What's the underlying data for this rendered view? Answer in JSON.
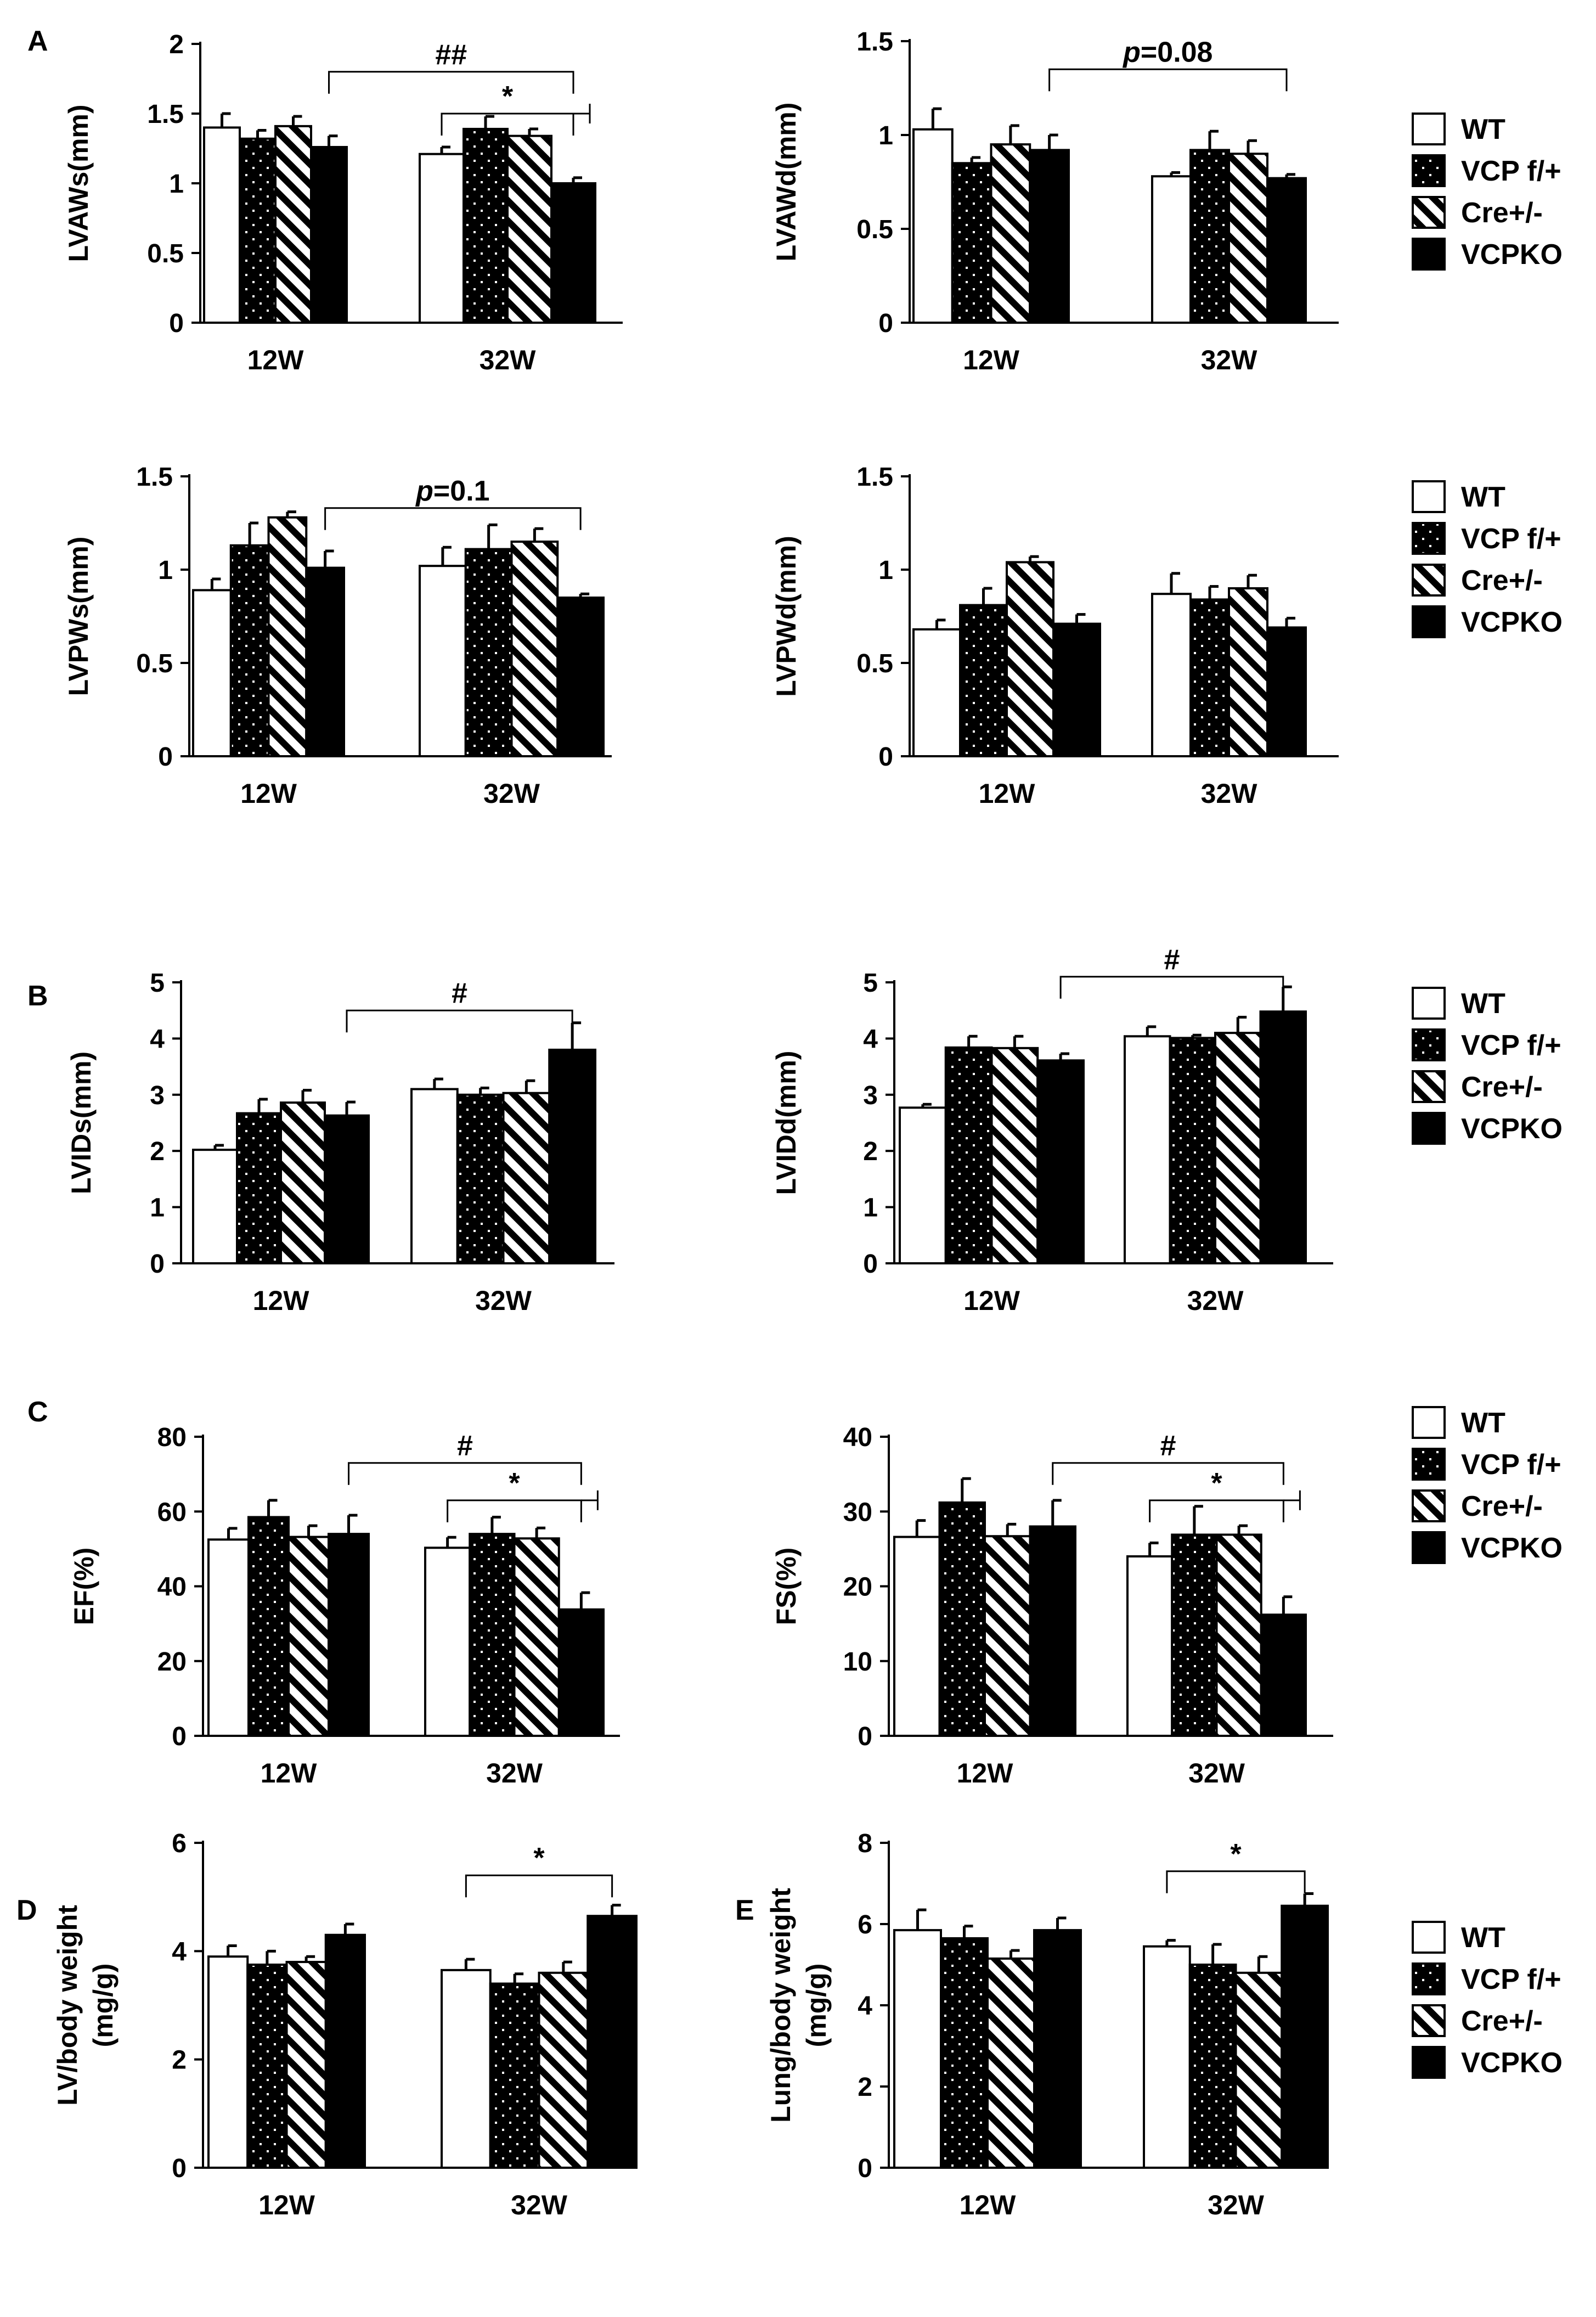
{
  "figure": {
    "panel_labels": [
      "A",
      "B",
      "C",
      "D",
      "E"
    ],
    "legend": [
      "WT",
      "VCP f/+",
      "Cre+/-",
      "VCPKO"
    ],
    "groups": [
      "12W",
      "32W"
    ]
  },
  "chart_data": [
    {
      "id": "lvaws",
      "panel": "A",
      "type": "bar",
      "ylabel": "LVAWs(mm)",
      "ylim": [
        0,
        2
      ],
      "yticks": [
        "0",
        "0.5",
        "1",
        "1.5",
        "2"
      ],
      "categories": [
        "12W",
        "32W"
      ],
      "series": [
        {
          "name": "WT",
          "values": [
            1.4,
            1.21
          ],
          "errors": [
            0.1,
            0.05
          ]
        },
        {
          "name": "VCP f/+",
          "values": [
            1.32,
            1.39
          ],
          "errors": [
            0.06,
            0.09
          ]
        },
        {
          "name": "Cre+/-",
          "values": [
            1.41,
            1.34
          ],
          "errors": [
            0.07,
            0.05
          ]
        },
        {
          "name": "VCPKO",
          "values": [
            1.26,
            1.0
          ],
          "errors": [
            0.08,
            0.04
          ]
        }
      ],
      "annotations": [
        {
          "label": "##",
          "from": [
            0,
            3
          ],
          "to": [
            1,
            3
          ],
          "y": 1.8
        },
        {
          "label": "*",
          "from": [
            1,
            0
          ],
          "to": [
            1,
            3
          ],
          "y": 1.5,
          "dagger": true
        }
      ]
    },
    {
      "id": "lvawd",
      "panel": "A",
      "type": "bar",
      "ylabel": "LVAWd(mm)",
      "ylim": [
        0,
        1.5
      ],
      "yticks": [
        "0",
        "0.5",
        "1",
        "1.5"
      ],
      "categories": [
        "12W",
        "32W"
      ],
      "series": [
        {
          "name": "WT",
          "values": [
            1.03,
            0.78
          ],
          "errors": [
            0.11,
            0.02
          ]
        },
        {
          "name": "VCP f/+",
          "values": [
            0.85,
            0.92
          ],
          "errors": [
            0.03,
            0.1
          ]
        },
        {
          "name": "Cre+/-",
          "values": [
            0.95,
            0.9
          ],
          "errors": [
            0.1,
            0.07
          ]
        },
        {
          "name": "VCPKO",
          "values": [
            0.92,
            0.77
          ],
          "errors": [
            0.08,
            0.02
          ]
        }
      ],
      "annotations": [
        {
          "label": "p=0.08",
          "italic_p": true,
          "from": [
            0,
            3
          ],
          "to": [
            1,
            3
          ],
          "y": 1.35
        }
      ]
    },
    {
      "id": "lvpws",
      "panel": "A",
      "type": "bar",
      "ylabel": "LVPWs(mm)",
      "ylim": [
        0,
        1.5
      ],
      "yticks": [
        "0",
        "0.5",
        "1",
        "1.5"
      ],
      "categories": [
        "12W",
        "32W"
      ],
      "series": [
        {
          "name": "WT",
          "values": [
            0.89,
            1.02
          ],
          "errors": [
            0.06,
            0.1
          ]
        },
        {
          "name": "VCP f/+",
          "values": [
            1.13,
            1.11
          ],
          "errors": [
            0.12,
            0.13
          ]
        },
        {
          "name": "Cre+/-",
          "values": [
            1.28,
            1.15
          ],
          "errors": [
            0.03,
            0.07
          ]
        },
        {
          "name": "VCPKO",
          "values": [
            1.01,
            0.85
          ],
          "errors": [
            0.09,
            0.02
          ]
        }
      ],
      "annotations": [
        {
          "label": "p=0.1",
          "italic_p": true,
          "from": [
            0,
            3
          ],
          "to": [
            1,
            3
          ],
          "y": 1.33
        }
      ]
    },
    {
      "id": "lvpwd",
      "panel": "A",
      "type": "bar",
      "ylabel": "LVPWd(mm)",
      "ylim": [
        0,
        1.5
      ],
      "yticks": [
        "0",
        "0.5",
        "1",
        "1.5"
      ],
      "categories": [
        "12W",
        "32W"
      ],
      "series": [
        {
          "name": "WT",
          "values": [
            0.68,
            0.87
          ],
          "errors": [
            0.05,
            0.11
          ]
        },
        {
          "name": "VCP f/+",
          "values": [
            0.81,
            0.84
          ],
          "errors": [
            0.09,
            0.07
          ]
        },
        {
          "name": "Cre+/-",
          "values": [
            1.04,
            0.9
          ],
          "errors": [
            0.03,
            0.07
          ]
        },
        {
          "name": "VCPKO",
          "values": [
            0.71,
            0.69
          ],
          "errors": [
            0.05,
            0.05
          ]
        }
      ],
      "annotations": []
    },
    {
      "id": "lvids",
      "panel": "B",
      "type": "bar",
      "ylabel": "LVIDs(mm)",
      "ylim": [
        0,
        5
      ],
      "yticks": [
        "0",
        "1",
        "2",
        "3",
        "4",
        "5"
      ],
      "categories": [
        "12W",
        "32W"
      ],
      "series": [
        {
          "name": "WT",
          "values": [
            2.02,
            3.1
          ],
          "errors": [
            0.08,
            0.18
          ]
        },
        {
          "name": "VCP f/+",
          "values": [
            2.67,
            3.0
          ],
          "errors": [
            0.25,
            0.12
          ]
        },
        {
          "name": "Cre+/-",
          "values": [
            2.86,
            3.03
          ],
          "errors": [
            0.22,
            0.22
          ]
        },
        {
          "name": "VCPKO",
          "values": [
            2.63,
            3.8
          ],
          "errors": [
            0.24,
            0.48
          ]
        }
      ],
      "annotations": [
        {
          "label": "#",
          "from": [
            0,
            3
          ],
          "to": [
            1,
            3
          ],
          "y": 4.5
        }
      ]
    },
    {
      "id": "lvidd",
      "panel": "B",
      "type": "bar",
      "ylabel": "LVIDd(mm)",
      "ylim": [
        0,
        5
      ],
      "yticks": [
        "0",
        "1",
        "2",
        "3",
        "4",
        "5"
      ],
      "categories": [
        "12W",
        "32W"
      ],
      "series": [
        {
          "name": "WT",
          "values": [
            2.77,
            4.04
          ],
          "errors": [
            0.06,
            0.17
          ]
        },
        {
          "name": "VCP f/+",
          "values": [
            3.84,
            4.01
          ],
          "errors": [
            0.2,
            0.05
          ]
        },
        {
          "name": "Cre+/-",
          "values": [
            3.83,
            4.1
          ],
          "errors": [
            0.21,
            0.28
          ]
        },
        {
          "name": "VCPKO",
          "values": [
            3.61,
            4.48
          ],
          "errors": [
            0.12,
            0.44
          ]
        }
      ],
      "annotations": [
        {
          "label": "#",
          "from": [
            0,
            3
          ],
          "to": [
            1,
            3
          ],
          "y": 5.1
        }
      ]
    },
    {
      "id": "ef",
      "panel": "C",
      "type": "bar",
      "ylabel": "EF(%)",
      "ylim": [
        0,
        80
      ],
      "yticks": [
        "0",
        "20",
        "40",
        "60",
        "80"
      ],
      "categories": [
        "12W",
        "32W"
      ],
      "series": [
        {
          "name": "WT",
          "values": [
            52.5,
            50.3
          ],
          "errors": [
            3.0,
            2.8
          ]
        },
        {
          "name": "VCP f/+",
          "values": [
            58.5,
            54.0
          ],
          "errors": [
            4.5,
            4.5
          ]
        },
        {
          "name": "Cre+/-",
          "values": [
            53.2,
            52.8
          ],
          "errors": [
            3.0,
            2.8
          ]
        },
        {
          "name": "VCPKO",
          "values": [
            54.0,
            33.8
          ],
          "errors": [
            5.0,
            4.5
          ]
        }
      ],
      "annotations": [
        {
          "label": "#",
          "from": [
            0,
            3
          ],
          "to": [
            1,
            3
          ],
          "y": 73
        },
        {
          "label": "*",
          "from": [
            1,
            0
          ],
          "to": [
            1,
            3
          ],
          "y": 63,
          "dagger": true
        }
      ]
    },
    {
      "id": "fs",
      "panel": "C",
      "type": "bar",
      "ylabel": "FS(%)",
      "ylim": [
        0,
        40
      ],
      "yticks": [
        "0",
        "10",
        "20",
        "30",
        "40"
      ],
      "categories": [
        "12W",
        "32W"
      ],
      "series": [
        {
          "name": "WT",
          "values": [
            26.6,
            24.0
          ],
          "errors": [
            2.2,
            1.8
          ]
        },
        {
          "name": "VCP f/+",
          "values": [
            31.2,
            26.9
          ],
          "errors": [
            3.2,
            3.8
          ]
        },
        {
          "name": "Cre+/-",
          "values": [
            26.7,
            26.9
          ],
          "errors": [
            1.6,
            1.2
          ]
        },
        {
          "name": "VCPKO",
          "values": [
            28.0,
            16.2
          ],
          "errors": [
            3.5,
            2.4
          ]
        }
      ],
      "annotations": [
        {
          "label": "#",
          "from": [
            0,
            3
          ],
          "to": [
            1,
            3
          ],
          "y": 36.5
        },
        {
          "label": "*",
          "from": [
            1,
            0
          ],
          "to": [
            1,
            3
          ],
          "y": 31.5,
          "dagger": true
        }
      ]
    },
    {
      "id": "lvbw",
      "panel": "D",
      "type": "bar",
      "ylabel": "LV/body weight",
      "ylabel2": "(mg/g)",
      "ylim": [
        0,
        6
      ],
      "yticks": [
        "0",
        "2",
        "4",
        "6"
      ],
      "categories": [
        "12W",
        "32W"
      ],
      "series": [
        {
          "name": "WT",
          "values": [
            3.9,
            3.65
          ],
          "errors": [
            0.2,
            0.2
          ]
        },
        {
          "name": "VCP f/+",
          "values": [
            3.75,
            3.4
          ],
          "errors": [
            0.25,
            0.18
          ]
        },
        {
          "name": "Cre+/-",
          "values": [
            3.8,
            3.6
          ],
          "errors": [
            0.1,
            0.2
          ]
        },
        {
          "name": "VCPKO",
          "values": [
            4.3,
            4.65
          ],
          "errors": [
            0.2,
            0.2
          ]
        }
      ],
      "annotations": [
        {
          "label": "*",
          "from": [
            1,
            0
          ],
          "to": [
            1,
            3
          ],
          "y": 5.4
        }
      ]
    },
    {
      "id": "lungbw",
      "panel": "E",
      "type": "bar",
      "ylabel": "Lung/body weight",
      "ylabel2": "(mg/g)",
      "ylim": [
        0,
        8
      ],
      "yticks": [
        "0",
        "2",
        "4",
        "6",
        "8"
      ],
      "categories": [
        "12W",
        "32W"
      ],
      "series": [
        {
          "name": "WT",
          "values": [
            5.85,
            5.45
          ],
          "errors": [
            0.5,
            0.15
          ]
        },
        {
          "name": "VCP f/+",
          "values": [
            5.65,
            5.0
          ],
          "errors": [
            0.3,
            0.5
          ]
        },
        {
          "name": "Cre+/-",
          "values": [
            5.15,
            4.8
          ],
          "errors": [
            0.2,
            0.4
          ]
        },
        {
          "name": "VCPKO",
          "values": [
            5.85,
            6.45
          ],
          "errors": [
            0.3,
            0.3
          ]
        }
      ],
      "annotations": [
        {
          "label": "*",
          "from": [
            1,
            0
          ],
          "to": [
            1,
            3
          ],
          "y": 7.3
        }
      ]
    }
  ]
}
